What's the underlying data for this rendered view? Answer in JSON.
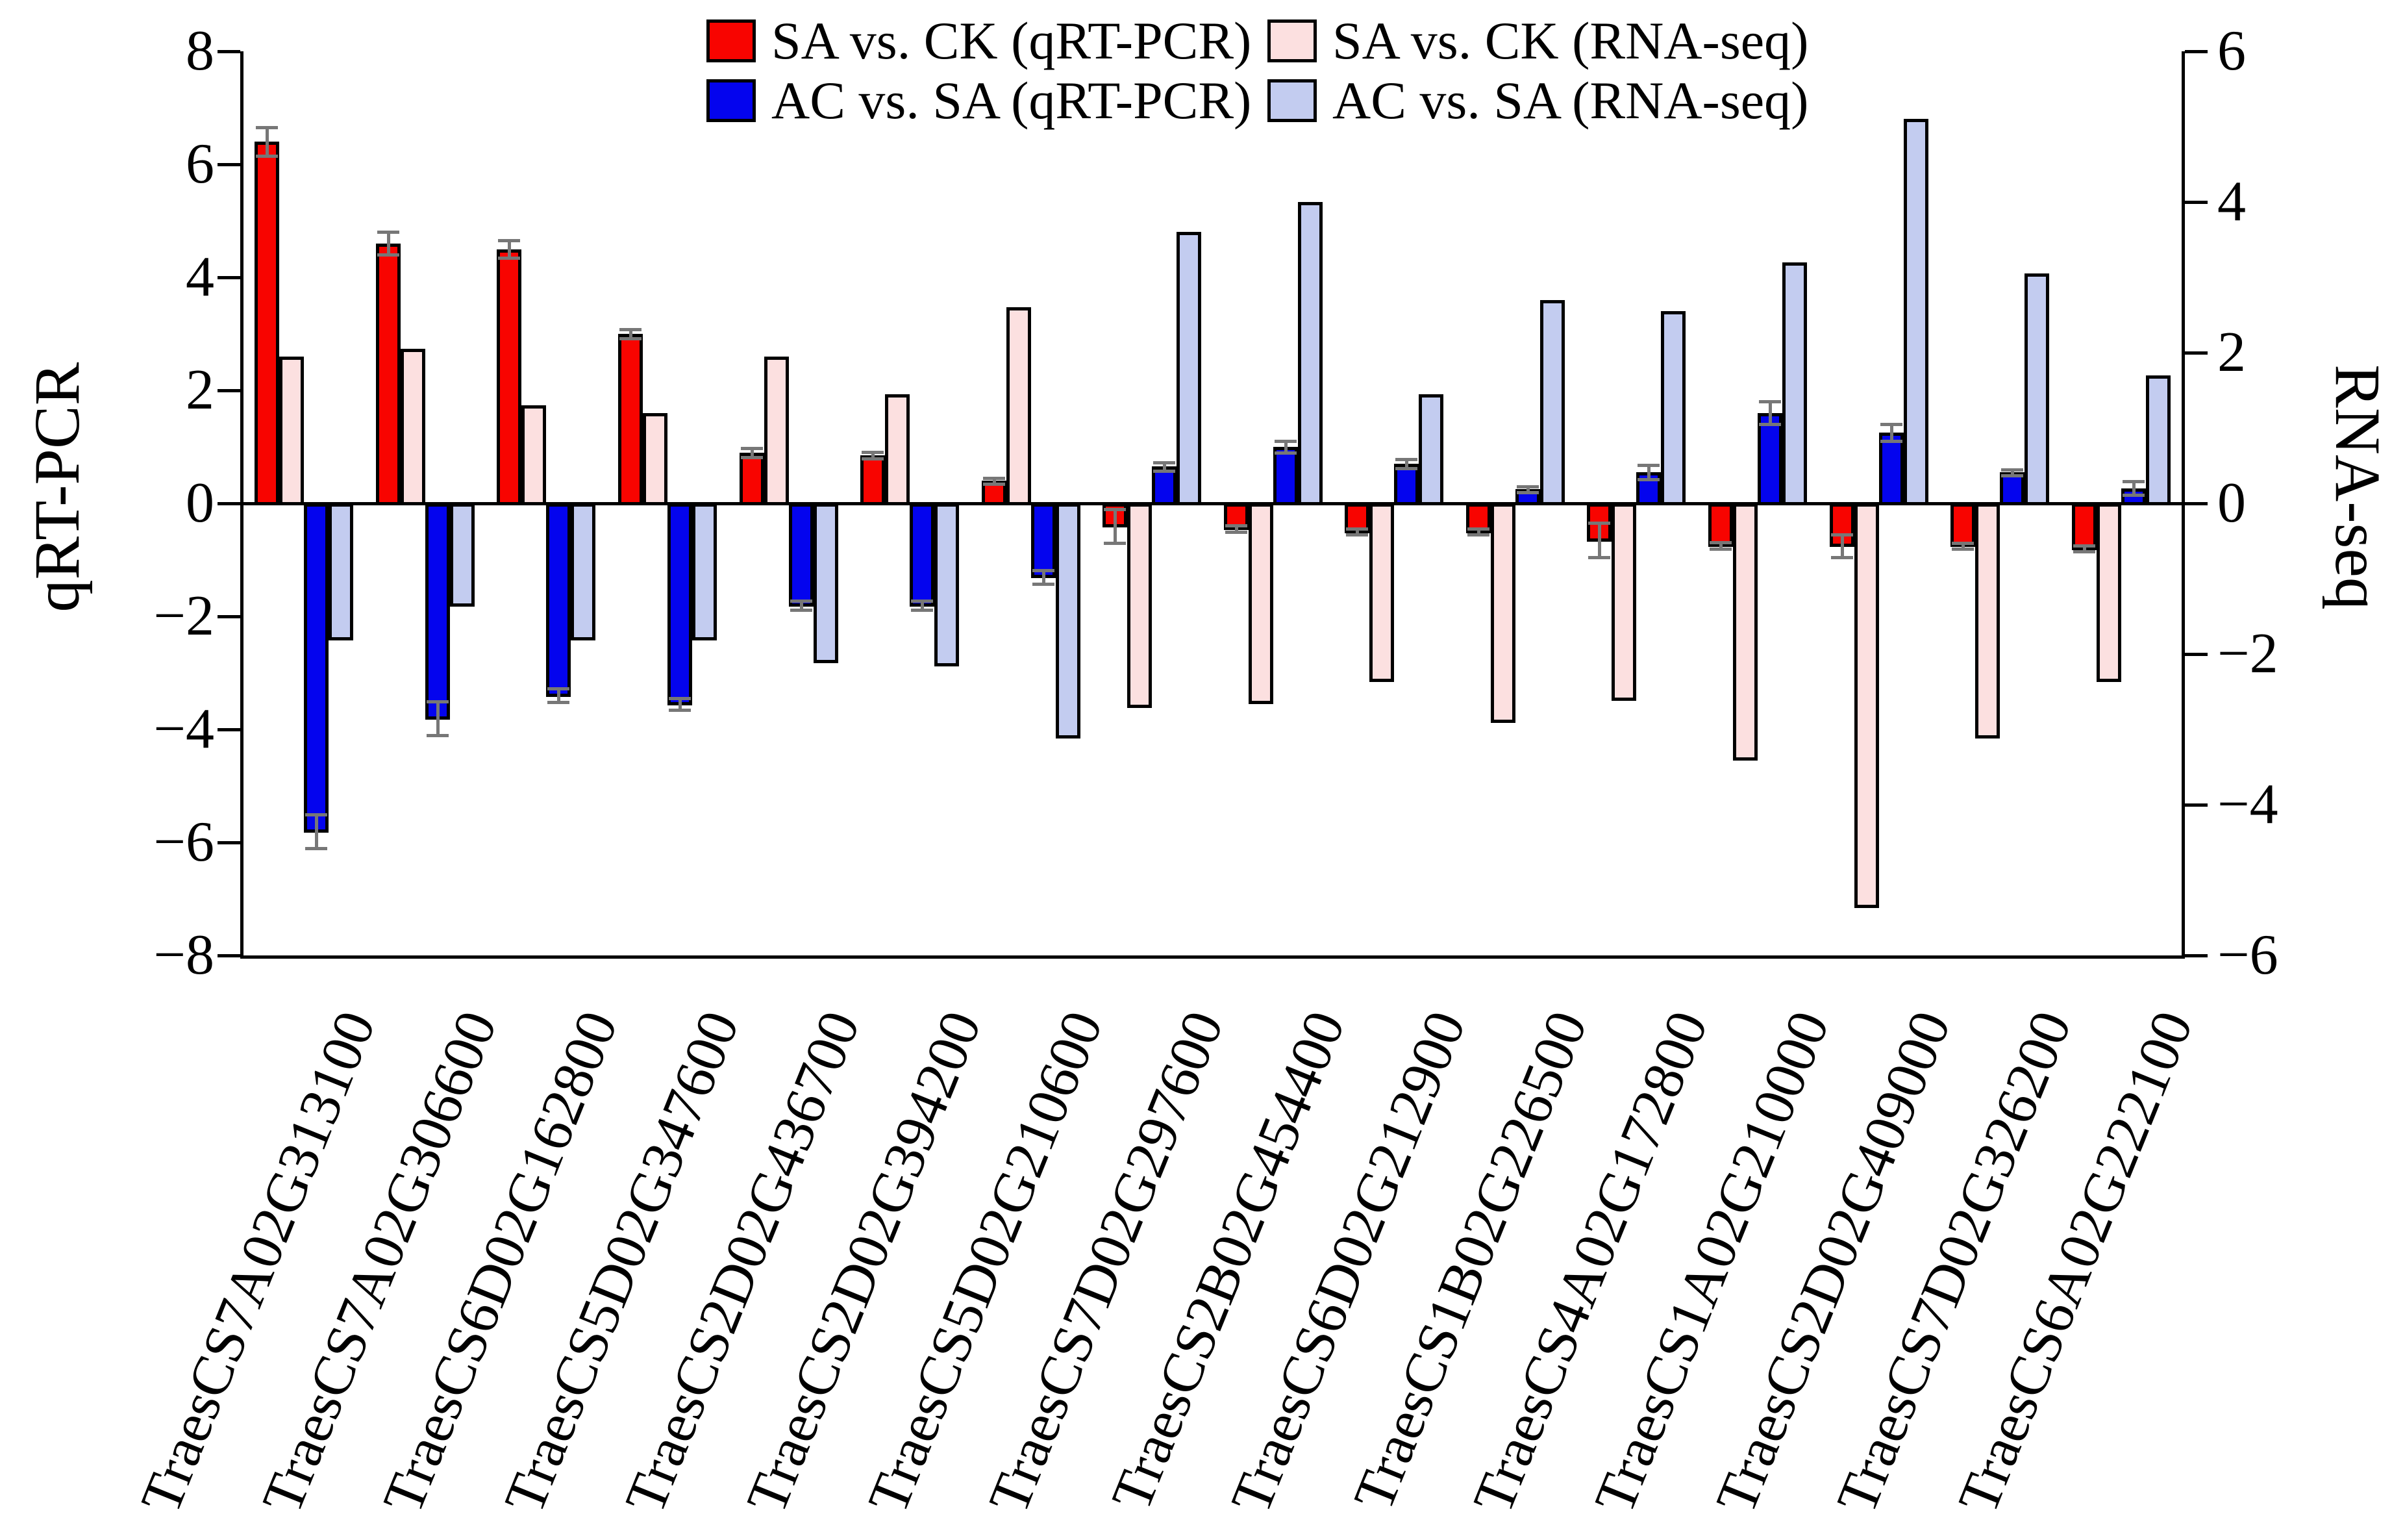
{
  "figure": {
    "background": "#FFFFFF",
    "left_axis_title": "qRT-PCR",
    "right_axis_title": "RNA-seq"
  },
  "colors": {
    "red": "#F80400",
    "blue": "#0404EE",
    "pink": "#FCE0E0",
    "lightblue": "#C3CCF0",
    "bar_border": "#000000",
    "error_bar": "#777777",
    "axis": "#000000"
  },
  "chart_data": {
    "type": "bar",
    "categories": [
      "TraesCS7A02G313100",
      "TraesCS7A02G306600",
      "TraesCS6D02G162800",
      "TraesCS5D02G347600",
      "TraesCS2D02G436700",
      "TraesCS2D02G394200",
      "TraesCS5D02G210600",
      "TraesCS7D02G297600",
      "TraesCS2B02G454400",
      "TraesCS6D02G212900",
      "TraesCS1B02G226500",
      "TraesCS4A02G172800",
      "TraesCS1A02G210000",
      "TraesCS2D02G409000",
      "TraesCS7D02G326200",
      "TraesCS6A02G222100"
    ],
    "series": [
      {
        "name": "SA vs. CK (qRT-PCR)",
        "axis": "left",
        "color_key": "red",
        "values": [
          6.4,
          4.6,
          4.5,
          3.0,
          0.9,
          0.85,
          0.4,
          -0.4,
          -0.45,
          -0.5,
          -0.5,
          -0.65,
          -0.75,
          -0.75,
          -0.75,
          -0.8
        ],
        "errors": [
          0.25,
          0.2,
          0.15,
          0.08,
          0.08,
          0.06,
          0.05,
          0.3,
          0.06,
          0.05,
          0.05,
          0.3,
          0.06,
          0.2,
          0.05,
          0.05
        ]
      },
      {
        "name": "SA vs. CK (RNA-seq)",
        "axis": "right",
        "color_key": "pink",
        "values": [
          1.95,
          2.05,
          1.3,
          1.2,
          1.95,
          1.45,
          2.6,
          -2.7,
          -2.65,
          -2.35,
          -2.9,
          -2.6,
          -3.4,
          -5.35,
          -3.1,
          -2.35
        ],
        "errors": null
      },
      {
        "name": "AC vs. SA (qRT-PCR)",
        "axis": "left",
        "color_key": "blue",
        "values": [
          -5.8,
          -3.8,
          -3.4,
          -3.55,
          -1.8,
          -1.8,
          -1.3,
          0.65,
          1.0,
          0.7,
          0.25,
          0.55,
          1.6,
          1.25,
          0.55,
          0.27
        ],
        "errors": [
          0.3,
          0.3,
          0.12,
          0.1,
          0.08,
          0.08,
          0.12,
          0.07,
          0.1,
          0.08,
          0.05,
          0.13,
          0.2,
          0.15,
          0.05,
          0.12
        ]
      },
      {
        "name": "AC vs. SA (RNA-seq)",
        "axis": "right",
        "color_key": "lightblue",
        "values": [
          -1.8,
          -1.35,
          -1.8,
          -1.8,
          -2.1,
          -2.15,
          -3.1,
          3.6,
          4.0,
          1.45,
          2.7,
          2.55,
          3.2,
          5.1,
          3.05,
          1.7
        ],
        "errors": null
      }
    ],
    "left_axis": {
      "label": "qRT-PCR",
      "ticks": [
        8,
        6,
        4,
        2,
        0,
        -2,
        -4,
        -6,
        -8
      ],
      "range": [
        -8,
        8
      ]
    },
    "right_axis": {
      "label": "RNA-seq",
      "ticks": [
        6,
        4,
        2,
        0,
        -2,
        -4,
        -6
      ],
      "range": [
        -6,
        6
      ]
    },
    "legend": {
      "position": "top-center",
      "rows": [
        [
          "SA vs. CK (qRT-PCR)",
          "SA vs. CK (RNA-seq)"
        ],
        [
          "AC vs. SA (qRT-PCR)",
          "AC vs. SA (RNA-seq)"
        ]
      ]
    },
    "grid": false,
    "error_bars_on": [
      "SA vs. CK (qRT-PCR)",
      "AC vs. SA (qRT-PCR)"
    ]
  }
}
